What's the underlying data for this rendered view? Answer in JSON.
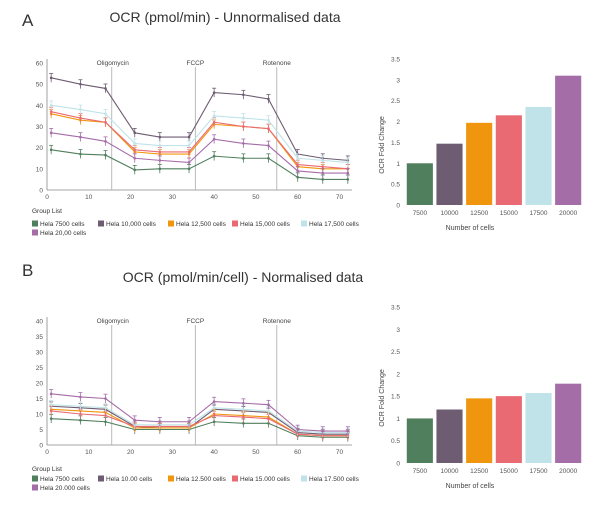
{
  "panels": [
    {
      "letter": "A",
      "title": "OCR (pmol/min) - Unnormalised data",
      "legend_title": "Group List",
      "legend": [
        "Hela 7500 cells",
        "Hela 10,000 cells",
        "Hela 12,500 cells",
        "Hela 15,000 cells",
        "Hela 17,500 cells",
        "Hela 20,00 cells"
      ],
      "line_yticks": [
        "0",
        "10",
        "20",
        "30",
        "40",
        "50",
        "60"
      ],
      "line_xticks": [
        "0",
        "10",
        "20",
        "30",
        "40",
        "50",
        "60",
        "70"
      ],
      "injections": [
        "Oligomycin",
        "FCCP",
        "Rotenone"
      ],
      "bar_ylabel": "OCR Fold Change",
      "bar_xlabel": "Number of cells",
      "bar_yticks": [
        "0",
        "0.5",
        "1",
        "1.5",
        "2",
        "2.5",
        "3",
        "3.5"
      ],
      "bar_categories": [
        "7500",
        "10000",
        "12500",
        "15000",
        "17500",
        "20000"
      ]
    },
    {
      "letter": "B",
      "title": "OCR (pmol/min/cell) - Normalised data",
      "legend_title": "Group List",
      "legend": [
        "Hela 7500 cells",
        "Hela 10.00 cells",
        "Hela 12.500 cells",
        "Hela 15.000 cells",
        "Hela 17.500 cells",
        "Hela 20.000 cells"
      ],
      "line_yticks": [
        "0",
        "5",
        "10",
        "15",
        "20",
        "25",
        "30",
        "35",
        "40"
      ],
      "line_xticks": [
        "0",
        "10",
        "20",
        "30",
        "40",
        "50",
        "60",
        "70"
      ],
      "injections": [
        "Oligomycin",
        "FCCP",
        "Rotenone"
      ],
      "bar_ylabel": "OCR Fold Change",
      "bar_xlabel": "Number of cells",
      "bar_yticks": [
        "0",
        "0.5",
        "1",
        "1.5",
        "2",
        "2.5",
        "3",
        "3.5"
      ],
      "bar_categories": [
        "7500",
        "10000",
        "12500",
        "15000",
        "17500",
        "20000"
      ]
    }
  ],
  "colors": [
    "#4f7f5c",
    "#6e5c72",
    "#f0960e",
    "#e96a72",
    "#bfe3e8",
    "#a56da8"
  ],
  "chart_data": [
    {
      "type": "line",
      "xlim": [
        0,
        73
      ],
      "ylim": [
        0,
        60
      ],
      "injection_x": [
        15.5,
        35.5,
        55
      ],
      "x": [
        1,
        8,
        14,
        21,
        27,
        34,
        40,
        47,
        53,
        60,
        66,
        72
      ],
      "series": [
        {
          "name": "Hela 7500 cells",
          "values": [
            19,
            17,
            16.5,
            9.5,
            10,
            10,
            16,
            15,
            15,
            6,
            5,
            5
          ]
        },
        {
          "name": "Hela 10,000 cells",
          "values": [
            53,
            50,
            48,
            27,
            25,
            25,
            46,
            45,
            43,
            17,
            15,
            14
          ]
        },
        {
          "name": "Hela 12,500 cells",
          "values": [
            36,
            33,
            32,
            18,
            17,
            17,
            31,
            30,
            29,
            11,
            10,
            10
          ]
        },
        {
          "name": "Hela 15,000 cells",
          "values": [
            37,
            34,
            32,
            19,
            18,
            18,
            32,
            30,
            29,
            12,
            11,
            10
          ]
        },
        {
          "name": "Hela 17,500 cells",
          "values": [
            40,
            38,
            36,
            22,
            21,
            21,
            35,
            34,
            33,
            15,
            14,
            13
          ]
        },
        {
          "name": "Hela 20,00 cells",
          "values": [
            27,
            25,
            23,
            15,
            14,
            13,
            24,
            22,
            21,
            9,
            8,
            8
          ]
        }
      ]
    },
    {
      "type": "bar",
      "ylabel": "OCR Fold Change",
      "xlabel": "Number of cells",
      "ylim": [
        0,
        3.5
      ],
      "categories": [
        "7500",
        "10000",
        "12500",
        "15000",
        "17500",
        "20000"
      ],
      "values": [
        1.0,
        1.47,
        1.97,
        2.15,
        2.35,
        3.1
      ]
    },
    {
      "type": "line",
      "xlim": [
        0,
        73
      ],
      "ylim": [
        0,
        40
      ],
      "injection_x": [
        15.5,
        35.5,
        55
      ],
      "x": [
        1,
        8,
        14,
        21,
        27,
        34,
        40,
        47,
        53,
        60,
        66,
        72
      ],
      "series": [
        {
          "name": "Hela 7500 cells",
          "values": [
            8.5,
            8,
            7.5,
            5,
            5,
            5,
            7.5,
            7,
            7,
            3,
            2.5,
            2.5
          ]
        },
        {
          "name": "Hela 10.00 cells",
          "values": [
            12.5,
            12,
            11.5,
            6,
            5.5,
            5.5,
            11.5,
            11,
            10.5,
            4,
            3.5,
            3.5
          ]
        },
        {
          "name": "Hela 12.500 cells",
          "values": [
            11.5,
            11,
            10.5,
            5.5,
            5.5,
            5.5,
            10,
            9.5,
            9,
            3.5,
            3,
            3
          ]
        },
        {
          "name": "Hela 15.000 cells",
          "values": [
            11,
            10,
            9.5,
            6,
            6,
            6,
            9.5,
            9,
            8.5,
            3.5,
            3,
            3
          ]
        },
        {
          "name": "Hela 17.500 cells",
          "values": [
            13,
            12.5,
            12,
            6.5,
            6.5,
            6.5,
            12,
            11.5,
            11,
            4.5,
            4,
            4
          ]
        },
        {
          "name": "Hela 20.000 cells",
          "values": [
            16.5,
            15.5,
            15,
            8,
            7.5,
            7.5,
            14,
            13.5,
            13,
            5,
            4.5,
            4.5
          ]
        }
      ]
    },
    {
      "type": "bar",
      "ylabel": "OCR Fold Change",
      "xlabel": "Number of cells",
      "ylim": [
        0,
        3.5
      ],
      "categories": [
        "7500",
        "10000",
        "12500",
        "15000",
        "17500",
        "20000"
      ],
      "values": [
        1.0,
        1.2,
        1.45,
        1.5,
        1.57,
        1.78
      ]
    }
  ]
}
